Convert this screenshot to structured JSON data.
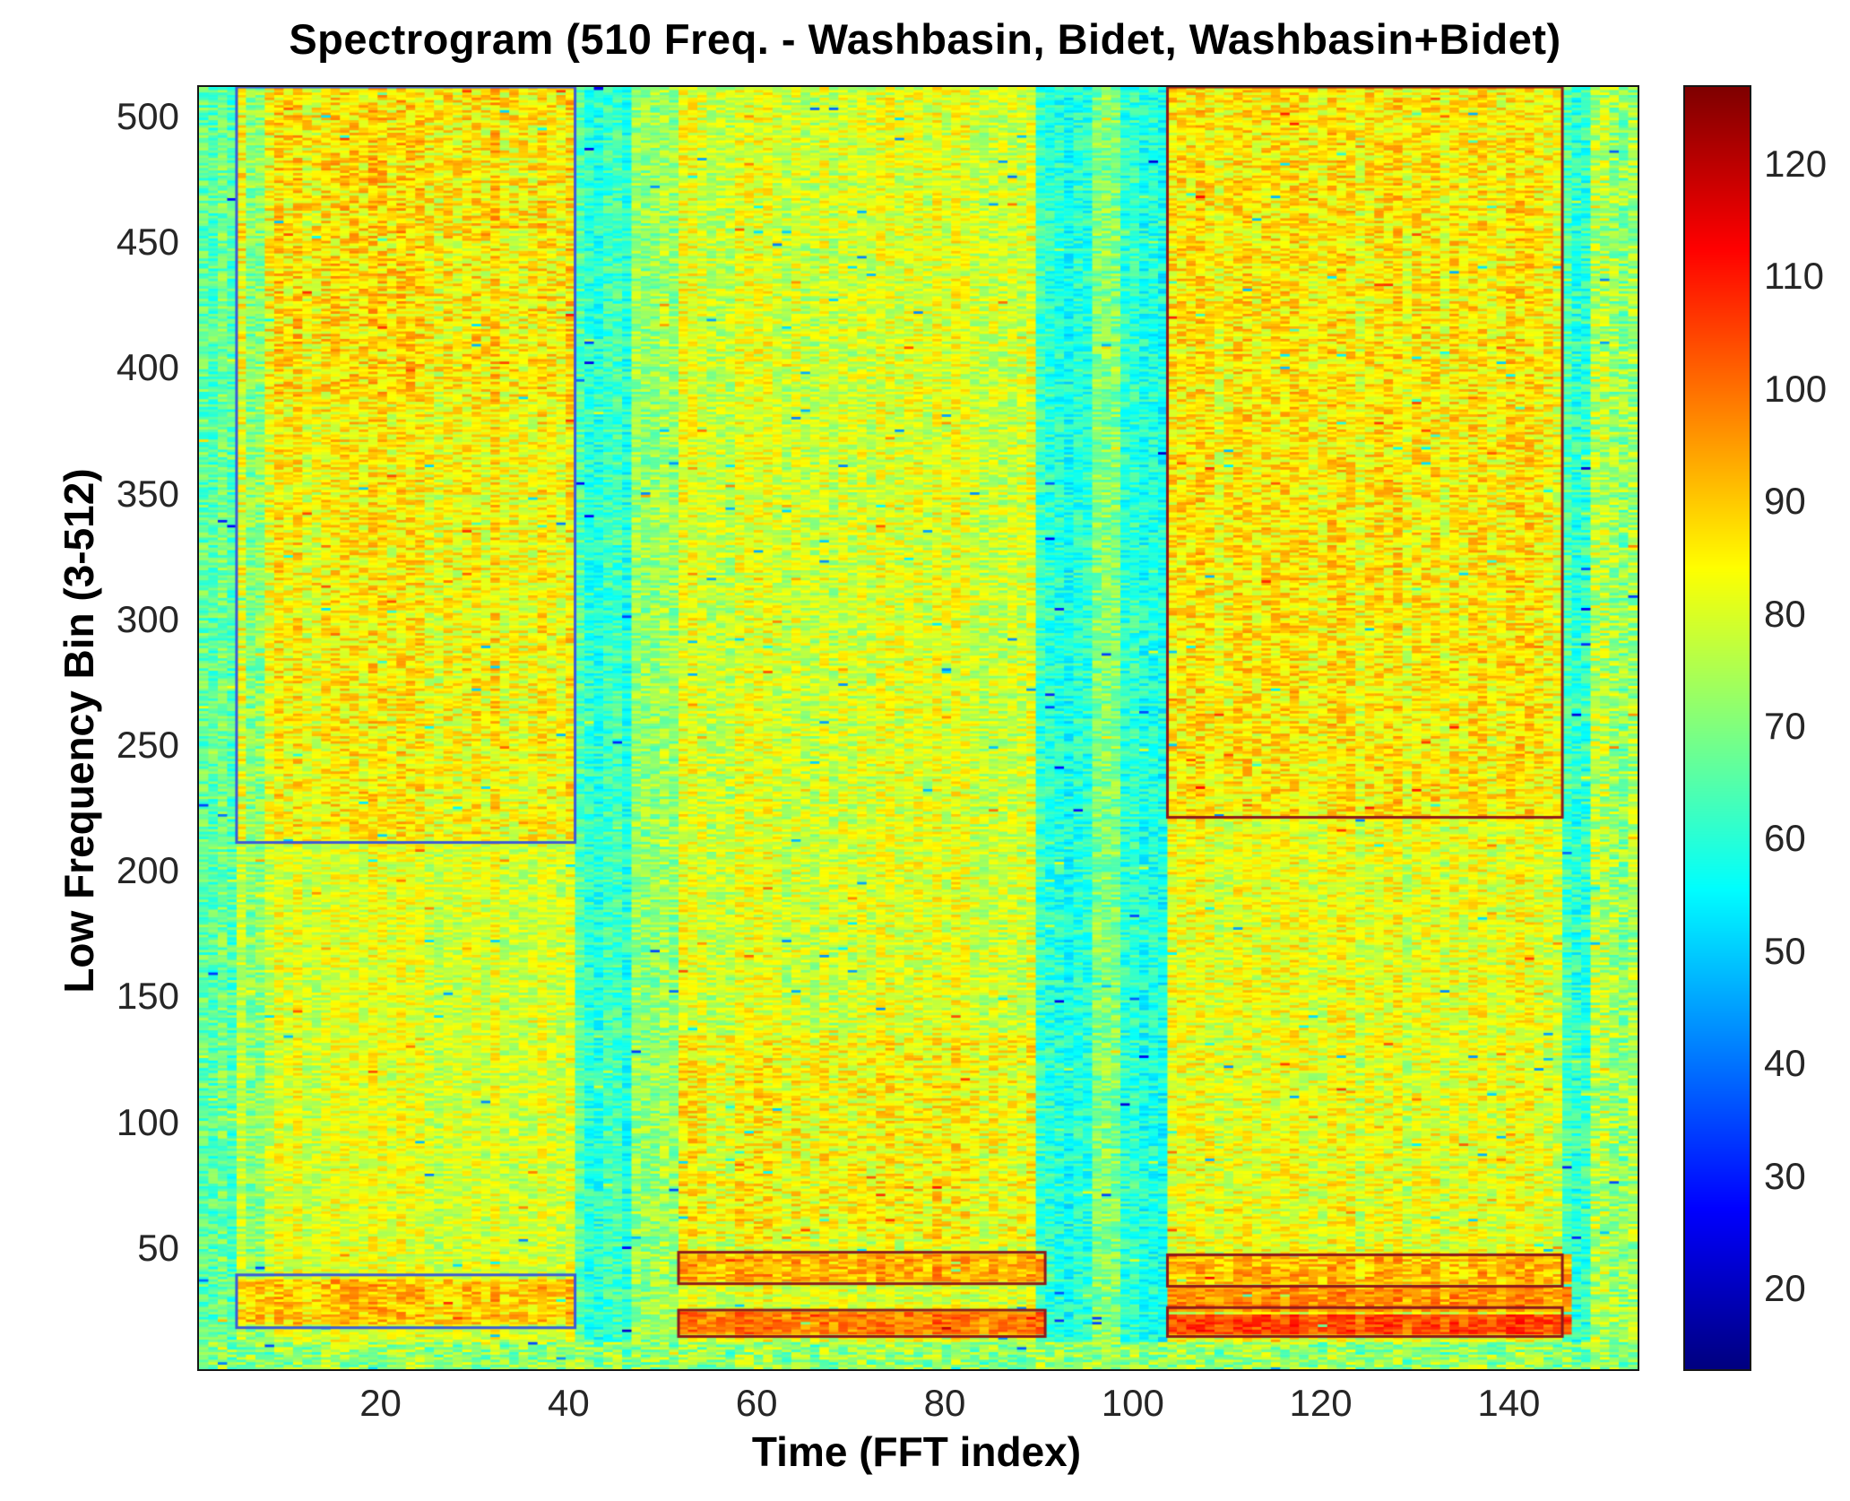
{
  "figure": {
    "title": "Spectrogram (510 Freq. - Washbasin, Bidet, Washbasin+Bidet)",
    "xlabel": "Time (FFT index)",
    "ylabel": "Low Frequency Bin (3-512)"
  },
  "chart_data": {
    "type": "heatmap",
    "title": "Spectrogram (510 Freq. - Washbasin, Bidet, Washbasin+Bidet)",
    "xlabel": "Time (FFT index)",
    "ylabel": "Low Frequency Bin (3-512)",
    "x_range": [
      0.5,
      153.5
    ],
    "y_range": [
      2.5,
      512.5
    ],
    "time_indices": [
      1,
      153
    ],
    "freq_bins": [
      3,
      512
    ],
    "x_ticks": [
      20,
      40,
      60,
      80,
      100,
      120,
      140
    ],
    "y_ticks": [
      50,
      100,
      150,
      200,
      250,
      300,
      350,
      400,
      450,
      500
    ],
    "grid": false,
    "colormap": "jet",
    "clim": [
      13,
      127
    ],
    "colorbar_ticks": [
      20,
      30,
      40,
      50,
      60,
      70,
      80,
      90,
      100,
      110,
      120
    ],
    "background_level": 77,
    "background_noise": 9,
    "column_noise": 6,
    "speckle": {
      "low_prob": 0.004,
      "low_delta": -30,
      "high_prob": 0.004,
      "high_delta": 14
    },
    "regions": [
      {
        "name": "left-edge-cyan",
        "t": [
          1,
          4
        ],
        "b": [
          3,
          512
        ],
        "level": 66,
        "noise": 9
      },
      {
        "name": "washbasin-low",
        "t": [
          5,
          40
        ],
        "b": [
          3,
          212
        ],
        "level": 80,
        "noise": 8
      },
      {
        "name": "washbasin-high",
        "t": [
          5,
          40
        ],
        "b": [
          212,
          512
        ],
        "level": 84,
        "noise": 10
      },
      {
        "name": "washbasin-top",
        "t": [
          5,
          40
        ],
        "b": [
          390,
          512
        ],
        "level": 86,
        "noise": 11
      },
      {
        "name": "washbasin-cyan-stripe",
        "t": [
          6,
          7
        ],
        "b": [
          3,
          512
        ],
        "level": 70,
        "noise": 9
      },
      {
        "name": "gap1-cyan",
        "t": [
          41,
          47
        ],
        "b": [
          3,
          512
        ],
        "level": 62,
        "noise": 8
      },
      {
        "name": "gap1-mixed",
        "t": [
          47,
          52
        ],
        "b": [
          3,
          512
        ],
        "level": 73,
        "noise": 9
      },
      {
        "name": "bidet-main",
        "t": [
          52,
          90
        ],
        "b": [
          3,
          512
        ],
        "level": 80,
        "noise": 9
      },
      {
        "name": "bidet-mid-orange",
        "t": [
          52,
          90
        ],
        "b": [
          55,
          135
        ],
        "level": 84,
        "noise": 10
      },
      {
        "name": "gap2-cyan",
        "t": [
          90,
          104
        ],
        "b": [
          3,
          512
        ],
        "level": 59,
        "noise": 8
      },
      {
        "name": "gap2-stripe",
        "t": [
          96,
          98
        ],
        "b": [
          3,
          512
        ],
        "level": 70,
        "noise": 9
      },
      {
        "name": "wbb-low",
        "t": [
          104,
          146
        ],
        "b": [
          3,
          222
        ],
        "level": 81,
        "noise": 9
      },
      {
        "name": "wbb-high",
        "t": [
          104,
          146
        ],
        "b": [
          222,
          512
        ],
        "level": 85,
        "noise": 10
      },
      {
        "name": "right-edge-cyan",
        "t": [
          146,
          149
        ],
        "b": [
          3,
          512
        ],
        "level": 63,
        "noise": 9
      },
      {
        "name": "right-edge-mixed",
        "t": [
          149,
          153
        ],
        "b": [
          3,
          512
        ],
        "level": 74,
        "noise": 11
      },
      {
        "name": "bottom-rows",
        "t": [
          1,
          153
        ],
        "b": [
          3,
          13
        ],
        "level": 72,
        "noise": 11
      },
      {
        "name": "washbasin-hot-band",
        "t": [
          5,
          40
        ],
        "b": [
          21,
          38
        ],
        "level": 90,
        "noise": 9
      },
      {
        "name": "bidet-hot-upper",
        "t": [
          52,
          90
        ],
        "b": [
          38,
          48
        ],
        "level": 93,
        "noise": 8
      },
      {
        "name": "bidet-hot-lower",
        "t": [
          52,
          90
        ],
        "b": [
          17,
          25
        ],
        "level": 99,
        "noise": 7
      },
      {
        "name": "wbb-hot-upper",
        "t": [
          104,
          146
        ],
        "b": [
          37,
          48
        ],
        "level": 91,
        "noise": 9
      },
      {
        "name": "wbb-hot-mid",
        "t": [
          104,
          146
        ],
        "b": [
          26,
          35
        ],
        "level": 95,
        "noise": 8
      },
      {
        "name": "wbb-hot-low",
        "t": [
          104,
          146
        ],
        "b": [
          17,
          24
        ],
        "level": 104,
        "noise": 7
      }
    ],
    "annotations": [
      {
        "label": "washbasin-upper-box",
        "color": "#3d5bd6",
        "t": [
          4.5,
          40.5
        ],
        "b": [
          212,
          512.5
        ],
        "lw": 3
      },
      {
        "label": "washbasin-lower-box",
        "color": "#3d5bd6",
        "t": [
          4.5,
          40.5
        ],
        "b": [
          19,
          40
        ],
        "lw": 3
      },
      {
        "label": "wbb-upper-box",
        "color": "#8e1a1a",
        "t": [
          103.5,
          145.5
        ],
        "b": [
          222,
          512.5
        ],
        "lw": 3
      },
      {
        "label": "bidet-band-box-1",
        "color": "#8e1a1a",
        "t": [
          51.5,
          90.5
        ],
        "b": [
          36.5,
          49
        ],
        "lw": 3
      },
      {
        "label": "bidet-band-box-2",
        "color": "#8e1a1a",
        "t": [
          51.5,
          90.5
        ],
        "b": [
          15.5,
          26
        ],
        "lw": 3
      },
      {
        "label": "wbb-band-box-1",
        "color": "#8e1a1a",
        "t": [
          103.5,
          145.5
        ],
        "b": [
          35.5,
          48
        ],
        "lw": 3
      },
      {
        "label": "wbb-band-box-2",
        "color": "#8e1a1a",
        "t": [
          103.5,
          145.5
        ],
        "b": [
          15.5,
          27
        ],
        "lw": 3
      }
    ]
  }
}
